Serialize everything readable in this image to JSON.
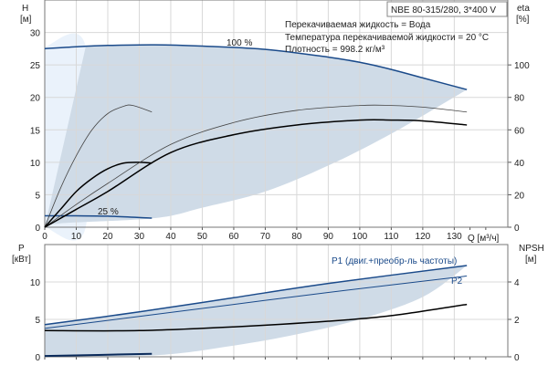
{
  "chart_data": [
    {
      "type": "line",
      "title": "NBE 80-315/280, 3*400 V",
      "annotations": [
        "Перекачиваемая жидкость = Вода",
        "Температура перекачиваемой жидкости = 20 °C",
        "Плотность = 998.2 кг/м³"
      ],
      "xlabel": "Q [м³/ч]",
      "ylabel": "H",
      "ylabel_unit": "[м]",
      "y2label": "eta",
      "y2label_unit": "[%]",
      "xlim": [
        0,
        147
      ],
      "ylim": [
        0,
        35
      ],
      "y2lim": [
        0,
        140
      ],
      "xticks": [
        0,
        10,
        20,
        30,
        40,
        50,
        60,
        70,
        80,
        90,
        100,
        110,
        120,
        130
      ],
      "yticks": [
        0,
        5,
        10,
        15,
        20,
        25,
        30
      ],
      "y2ticks": [
        0,
        20,
        40,
        60,
        80,
        100
      ],
      "grid": true,
      "series": [
        {
          "name": "100 %",
          "axis": "H",
          "x": [
            0,
            10,
            20,
            35,
            50,
            70,
            90,
            100,
            110,
            120,
            134
          ],
          "y": [
            27.5,
            27.8,
            28,
            28.1,
            27.9,
            27.4,
            26.2,
            25.4,
            24.3,
            23,
            21.2
          ]
        },
        {
          "name": "25 %",
          "axis": "H",
          "x": [
            0,
            10,
            20,
            34
          ],
          "y": [
            1.75,
            1.75,
            1.7,
            1.4
          ]
        },
        {
          "axis": "eta",
          "x": [
            0,
            5,
            10,
            15,
            20,
            25,
            28,
            34
          ],
          "y": [
            0,
            24,
            44,
            60,
            70,
            74.5,
            75,
            71
          ]
        },
        {
          "axis": "eta",
          "x": [
            0,
            5,
            10,
            15,
            20,
            25,
            30,
            34
          ],
          "y": [
            0,
            11,
            22,
            30,
            36,
            39.5,
            40,
            39.5
          ]
        },
        {
          "axis": "eta",
          "x": [
            0,
            10,
            20,
            40,
            60,
            80,
            100,
            110,
            120,
            134
          ],
          "y": [
            0,
            14,
            27,
            51,
            64.5,
            72,
            75,
            75,
            74,
            71
          ]
        },
        {
          "axis": "eta",
          "x": [
            0,
            10,
            20,
            40,
            60,
            80,
            100,
            110,
            120,
            134
          ],
          "y": [
            0,
            11,
            22,
            46,
            57,
            63,
            66,
            66,
            65.5,
            63
          ]
        }
      ],
      "operating_range": {
        "upper": [
          [
            13,
            27.8
          ],
          [
            35,
            28.1
          ],
          [
            70,
            27.4
          ],
          [
            100,
            25.4
          ],
          [
            134,
            21.2
          ]
        ],
        "lower": [
          [
            134,
            21.2
          ],
          [
            110,
            14.4
          ],
          [
            90,
            9.5
          ],
          [
            70,
            5.5
          ],
          [
            50,
            3
          ],
          [
            35,
            1.4
          ],
          [
            5,
            0.6
          ],
          [
            0,
            0
          ]
        ]
      }
    },
    {
      "type": "line",
      "xlabel": "Q [м³/ч]",
      "ylabel": "P",
      "ylabel_unit": "[кВт]",
      "y2label": "NPSH",
      "y2label_unit": "[м]",
      "xlim": [
        0,
        147
      ],
      "ylim": [
        0,
        15
      ],
      "y2lim": [
        0,
        6
      ],
      "yticks": [
        0,
        5,
        10
      ],
      "y2ticks": [
        0,
        2,
        4
      ],
      "grid": true,
      "series": [
        {
          "name": "P1 (двиг.+преобр-ль частоты)",
          "axis": "P",
          "x": [
            0,
            30,
            60,
            90,
            134
          ],
          "y": [
            4.3,
            6,
            7.9,
            9.8,
            12.2
          ]
        },
        {
          "name": "P2",
          "axis": "P",
          "x": [
            0,
            30,
            60,
            90,
            134
          ],
          "y": [
            3.8,
            5.4,
            7,
            8.6,
            10.8
          ]
        },
        {
          "axis": "NPSH",
          "x": [
            0,
            30,
            60,
            90,
            110,
            134
          ],
          "y": [
            1.4,
            1.4,
            1.6,
            1.9,
            2.2,
            2.8
          ]
        },
        {
          "axis": "P",
          "x": [
            0,
            34
          ],
          "y": [
            0.1,
            0.4
          ]
        }
      ],
      "operating_range": {
        "upper": [
          [
            0,
            4.3
          ],
          [
            30,
            6
          ],
          [
            60,
            7.9
          ],
          [
            90,
            9.8
          ],
          [
            134,
            12.2
          ]
        ],
        "lower": [
          [
            134,
            12.2
          ],
          [
            120,
            8
          ],
          [
            100,
            5
          ],
          [
            80,
            3
          ],
          [
            60,
            1.5
          ],
          [
            35,
            0.2
          ],
          [
            0,
            0.1
          ]
        ]
      }
    }
  ]
}
